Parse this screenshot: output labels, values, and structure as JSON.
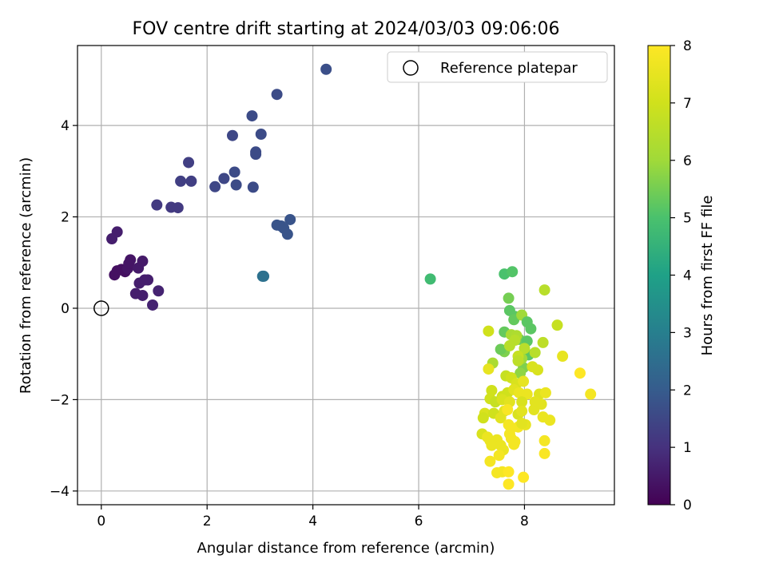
{
  "chart_data": {
    "type": "scatter",
    "title": "FOV centre drift starting at 2024/03/03 09:06:06",
    "xlabel": "Angular distance from reference (arcmin)",
    "ylabel": "Rotation from reference (arcmin)",
    "xlim": [
      -0.45,
      9.7
    ],
    "ylim": [
      -4.3,
      5.75
    ],
    "xticks": [
      0,
      2,
      4,
      6,
      8
    ],
    "yticks": [
      -4,
      -2,
      0,
      2,
      4
    ],
    "grid": true,
    "legend": {
      "position": "top-right",
      "entries": [
        "Reference platepar"
      ]
    },
    "reference_point": {
      "x": 0,
      "y": 0
    },
    "colorbar": {
      "label": "Hours from first FF file",
      "range": [
        0,
        8
      ],
      "ticks": [
        0,
        1,
        2,
        3,
        4,
        5,
        6,
        7,
        8
      ],
      "colormap": "viridis"
    },
    "points": [
      {
        "x": 0.2,
        "y": 1.52,
        "h": 0.6
      },
      {
        "x": 0.3,
        "y": 1.67,
        "h": 0.6
      },
      {
        "x": 0.25,
        "y": 0.73,
        "h": 0.3
      },
      {
        "x": 0.3,
        "y": 0.82,
        "h": 0.3
      },
      {
        "x": 0.38,
        "y": 0.85,
        "h": 0.3
      },
      {
        "x": 0.45,
        "y": 0.8,
        "h": 0.3
      },
      {
        "x": 0.5,
        "y": 0.87,
        "h": 0.4
      },
      {
        "x": 0.55,
        "y": 1.06,
        "h": 0.4
      },
      {
        "x": 0.52,
        "y": 0.98,
        "h": 0.4
      },
      {
        "x": 0.7,
        "y": 0.88,
        "h": 0.5
      },
      {
        "x": 0.78,
        "y": 1.03,
        "h": 0.5
      },
      {
        "x": 0.72,
        "y": 0.55,
        "h": 0.6
      },
      {
        "x": 0.82,
        "y": 0.62,
        "h": 0.6
      },
      {
        "x": 0.88,
        "y": 0.62,
        "h": 0.6
      },
      {
        "x": 0.65,
        "y": 0.32,
        "h": 0.6
      },
      {
        "x": 0.78,
        "y": 0.28,
        "h": 0.6
      },
      {
        "x": 0.97,
        "y": 0.07,
        "h": 0.7
      },
      {
        "x": 1.08,
        "y": 0.38,
        "h": 0.7
      },
      {
        "x": 1.05,
        "y": 2.26,
        "h": 1.2
      },
      {
        "x": 1.32,
        "y": 2.21,
        "h": 1.2
      },
      {
        "x": 1.45,
        "y": 2.2,
        "h": 1.2
      },
      {
        "x": 1.5,
        "y": 2.78,
        "h": 1.3
      },
      {
        "x": 1.65,
        "y": 3.19,
        "h": 1.3
      },
      {
        "x": 1.7,
        "y": 2.78,
        "h": 1.3
      },
      {
        "x": 2.15,
        "y": 2.66,
        "h": 1.5
      },
      {
        "x": 2.32,
        "y": 2.84,
        "h": 1.5
      },
      {
        "x": 2.48,
        "y": 3.78,
        "h": 1.5
      },
      {
        "x": 2.52,
        "y": 2.98,
        "h": 1.6
      },
      {
        "x": 2.55,
        "y": 2.7,
        "h": 1.6
      },
      {
        "x": 2.85,
        "y": 4.21,
        "h": 1.6
      },
      {
        "x": 2.92,
        "y": 3.37,
        "h": 1.6
      },
      {
        "x": 2.92,
        "y": 3.42,
        "h": 1.6
      },
      {
        "x": 3.02,
        "y": 3.81,
        "h": 1.6
      },
      {
        "x": 2.87,
        "y": 2.65,
        "h": 1.6
      },
      {
        "x": 3.32,
        "y": 4.68,
        "h": 1.6
      },
      {
        "x": 4.25,
        "y": 5.23,
        "h": 1.7
      },
      {
        "x": 3.05,
        "y": 0.7,
        "h": 2.6
      },
      {
        "x": 3.07,
        "y": 0.7,
        "h": 2.6
      },
      {
        "x": 3.32,
        "y": 1.82,
        "h": 1.8
      },
      {
        "x": 3.4,
        "y": 1.8,
        "h": 1.8
      },
      {
        "x": 3.45,
        "y": 1.75,
        "h": 1.8
      },
      {
        "x": 3.52,
        "y": 1.62,
        "h": 1.8
      },
      {
        "x": 3.57,
        "y": 1.94,
        "h": 1.8
      },
      {
        "x": 6.22,
        "y": 0.64,
        "h": 4.8
      },
      {
        "x": 7.62,
        "y": 0.75,
        "h": 5.0
      },
      {
        "x": 7.77,
        "y": 0.8,
        "h": 5.1
      },
      {
        "x": 7.7,
        "y": 0.22,
        "h": 5.5
      },
      {
        "x": 7.72,
        "y": -0.05,
        "h": 5.2
      },
      {
        "x": 7.82,
        "y": -0.18,
        "h": 5.2
      },
      {
        "x": 7.8,
        "y": -0.25,
        "h": 5.3
      },
      {
        "x": 7.62,
        "y": -0.52,
        "h": 5.3
      },
      {
        "x": 7.95,
        "y": -0.15,
        "h": 6.0
      },
      {
        "x": 8.05,
        "y": -0.3,
        "h": 5.2
      },
      {
        "x": 8.12,
        "y": -0.45,
        "h": 5.2
      },
      {
        "x": 7.9,
        "y": -0.68,
        "h": 5.4
      },
      {
        "x": 8.05,
        "y": -0.72,
        "h": 5.2
      },
      {
        "x": 8.08,
        "y": -1.02,
        "h": 5.2
      },
      {
        "x": 7.62,
        "y": -0.95,
        "h": 5.6
      },
      {
        "x": 7.55,
        "y": -0.9,
        "h": 5.4
      },
      {
        "x": 7.98,
        "y": -1.3,
        "h": 5.6
      },
      {
        "x": 7.92,
        "y": -1.42,
        "h": 5.8
      },
      {
        "x": 7.95,
        "y": -1.1,
        "h": 6.0
      },
      {
        "x": 7.75,
        "y": -0.58,
        "h": 6.2
      },
      {
        "x": 7.85,
        "y": -0.6,
        "h": 6.3
      },
      {
        "x": 7.82,
        "y": -0.7,
        "h": 6.5
      },
      {
        "x": 7.72,
        "y": -0.82,
        "h": 6.5
      },
      {
        "x": 8.0,
        "y": -0.88,
        "h": 6.5
      },
      {
        "x": 8.38,
        "y": 0.4,
        "h": 6.5
      },
      {
        "x": 8.35,
        "y": -0.75,
        "h": 6.6
      },
      {
        "x": 8.62,
        "y": -0.37,
        "h": 6.8
      },
      {
        "x": 7.32,
        "y": -0.5,
        "h": 7.0
      },
      {
        "x": 7.4,
        "y": -1.2,
        "h": 6.2
      },
      {
        "x": 7.88,
        "y": -1.05,
        "h": 6.8
      },
      {
        "x": 7.88,
        "y": -1.15,
        "h": 6.6
      },
      {
        "x": 8.2,
        "y": -0.97,
        "h": 6.5
      },
      {
        "x": 8.15,
        "y": -1.28,
        "h": 7.2
      },
      {
        "x": 8.25,
        "y": -1.35,
        "h": 7.2
      },
      {
        "x": 7.32,
        "y": -1.33,
        "h": 7.5
      },
      {
        "x": 7.65,
        "y": -1.48,
        "h": 6.8
      },
      {
        "x": 7.75,
        "y": -1.52,
        "h": 7.0
      },
      {
        "x": 7.85,
        "y": -1.65,
        "h": 7.2
      },
      {
        "x": 7.98,
        "y": -1.6,
        "h": 7.5
      },
      {
        "x": 7.38,
        "y": -1.8,
        "h": 7.0
      },
      {
        "x": 7.35,
        "y": -1.98,
        "h": 7.0
      },
      {
        "x": 7.58,
        "y": -1.93,
        "h": 7.0
      },
      {
        "x": 7.68,
        "y": -1.85,
        "h": 7.0
      },
      {
        "x": 7.8,
        "y": -1.78,
        "h": 7.4
      },
      {
        "x": 7.9,
        "y": -1.85,
        "h": 7.6
      },
      {
        "x": 8.05,
        "y": -1.88,
        "h": 7.6
      },
      {
        "x": 8.28,
        "y": -1.88,
        "h": 7.3
      },
      {
        "x": 8.4,
        "y": -1.85,
        "h": 7.6
      },
      {
        "x": 7.45,
        "y": -2.05,
        "h": 6.8
      },
      {
        "x": 7.58,
        "y": -2.0,
        "h": 7.2
      },
      {
        "x": 7.72,
        "y": -2.05,
        "h": 7.4
      },
      {
        "x": 7.95,
        "y": -2.05,
        "h": 7.2
      },
      {
        "x": 8.2,
        "y": -2.05,
        "h": 7.4
      },
      {
        "x": 8.32,
        "y": -2.1,
        "h": 7.4
      },
      {
        "x": 7.25,
        "y": -2.3,
        "h": 7.2
      },
      {
        "x": 7.22,
        "y": -2.4,
        "h": 7.0
      },
      {
        "x": 7.42,
        "y": -2.3,
        "h": 7.0
      },
      {
        "x": 7.55,
        "y": -2.4,
        "h": 7.4
      },
      {
        "x": 7.62,
        "y": -2.25,
        "h": 7.4
      },
      {
        "x": 7.68,
        "y": -2.22,
        "h": 7.9
      },
      {
        "x": 7.88,
        "y": -2.32,
        "h": 7.2
      },
      {
        "x": 7.95,
        "y": -2.25,
        "h": 7.4
      },
      {
        "x": 8.18,
        "y": -2.22,
        "h": 7.4
      },
      {
        "x": 8.35,
        "y": -2.38,
        "h": 7.6
      },
      {
        "x": 8.48,
        "y": -2.45,
        "h": 7.6
      },
      {
        "x": 8.02,
        "y": -2.55,
        "h": 7.5
      },
      {
        "x": 7.7,
        "y": -2.55,
        "h": 7.8
      },
      {
        "x": 7.75,
        "y": -2.62,
        "h": 7.8
      },
      {
        "x": 7.88,
        "y": -2.6,
        "h": 7.8
      },
      {
        "x": 7.95,
        "y": -2.52,
        "h": 7.4
      },
      {
        "x": 7.2,
        "y": -2.75,
        "h": 7.2
      },
      {
        "x": 7.3,
        "y": -2.82,
        "h": 7.6
      },
      {
        "x": 7.35,
        "y": -2.9,
        "h": 7.6
      },
      {
        "x": 7.48,
        "y": -2.88,
        "h": 7.6
      },
      {
        "x": 7.72,
        "y": -2.75,
        "h": 7.8
      },
      {
        "x": 7.75,
        "y": -2.85,
        "h": 7.8
      },
      {
        "x": 7.82,
        "y": -2.92,
        "h": 7.8
      },
      {
        "x": 7.38,
        "y": -3.0,
        "h": 7.6
      },
      {
        "x": 7.55,
        "y": -3.0,
        "h": 7.6
      },
      {
        "x": 7.6,
        "y": -3.1,
        "h": 7.6
      },
      {
        "x": 7.8,
        "y": -2.98,
        "h": 7.8
      },
      {
        "x": 7.35,
        "y": -3.35,
        "h": 7.8
      },
      {
        "x": 7.52,
        "y": -3.22,
        "h": 7.8
      },
      {
        "x": 8.38,
        "y": -2.9,
        "h": 7.8
      },
      {
        "x": 8.38,
        "y": -3.18,
        "h": 7.9
      },
      {
        "x": 7.48,
        "y": -3.6,
        "h": 7.8
      },
      {
        "x": 7.58,
        "y": -3.58,
        "h": 7.8
      },
      {
        "x": 7.7,
        "y": -3.58,
        "h": 8.0
      },
      {
        "x": 7.7,
        "y": -3.85,
        "h": 8.0
      },
      {
        "x": 7.98,
        "y": -3.7,
        "h": 8.0
      },
      {
        "x": 8.72,
        "y": -1.05,
        "h": 7.5
      },
      {
        "x": 9.05,
        "y": -1.42,
        "h": 8.0
      },
      {
        "x": 9.25,
        "y": -1.88,
        "h": 7.8
      }
    ]
  }
}
